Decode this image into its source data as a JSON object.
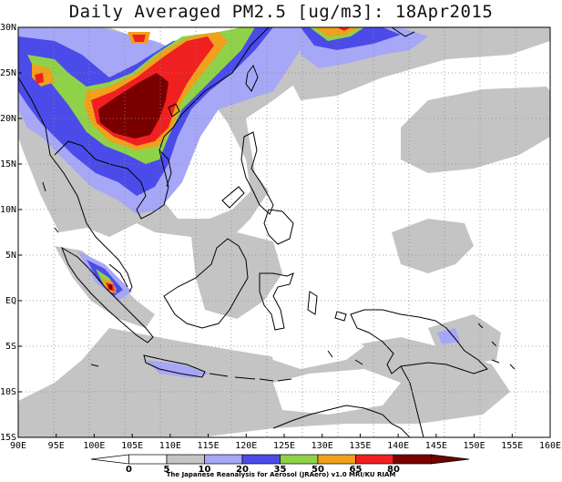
{
  "title": "Daily Averaged PM2.5 [ug/m3]: 18Apr2015",
  "lon_labels": [
    "90E",
    "95E",
    "100E",
    "105E",
    "110E",
    "115E",
    "120E",
    "125E",
    "130E",
    "135E",
    "140E",
    "145E",
    "150E",
    "155E",
    "160E"
  ],
  "lat_labels": [
    "30N",
    "25N",
    "20N",
    "15N",
    "10N",
    "5N",
    "EQ",
    "5S",
    "10S",
    "15S"
  ],
  "colorbar": {
    "bounds": [
      "0",
      "5",
      "10",
      "20",
      "35",
      "50",
      "65",
      "80"
    ],
    "colors": [
      "#ffffff",
      "#ffffff",
      "#c4c4c4",
      "#a7a7f7",
      "#4b4be9",
      "#8fd24a",
      "#f0a01c",
      "#f02020",
      "#7a0000",
      "#6e0000"
    ]
  },
  "credit": "The Japanese Reanalysis for Aerosol (JRAero) v1.0 MRI/KU RIAM"
}
